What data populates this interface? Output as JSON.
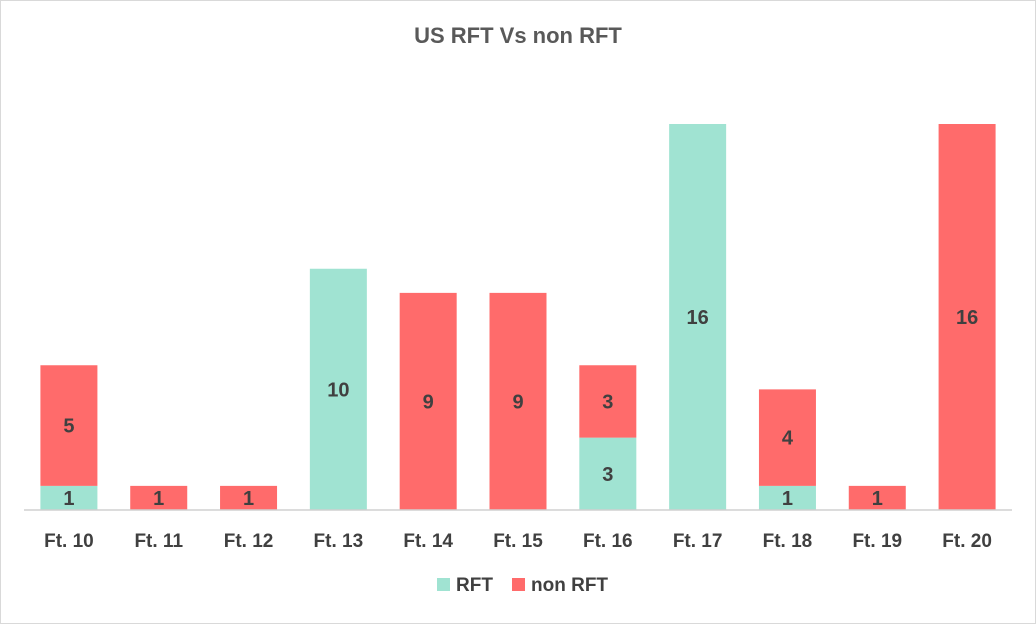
{
  "chart_data": {
    "type": "bar",
    "stacked": true,
    "title": "US RFT Vs non RFT",
    "xlabel": "",
    "ylabel": "",
    "categories": [
      "Ft. 10",
      "Ft. 11",
      "Ft. 12",
      "Ft. 13",
      "Ft. 14",
      "Ft. 15",
      "Ft. 16",
      "Ft. 17",
      "Ft. 18",
      "Ft. 19",
      "Ft. 20"
    ],
    "series": [
      {
        "name": "RFT",
        "color": "#a0e3d2",
        "values": [
          1,
          0,
          0,
          10,
          0,
          0,
          3,
          16,
          1,
          0,
          0
        ]
      },
      {
        "name": "non RFT",
        "color": "#ff6b6b",
        "values": [
          5,
          1,
          1,
          0,
          9,
          9,
          3,
          0,
          4,
          1,
          16
        ]
      }
    ],
    "ylim": [
      0,
      16
    ],
    "grid": false,
    "y_axis_visible": false,
    "legend": "bottom",
    "data_labels": true
  }
}
